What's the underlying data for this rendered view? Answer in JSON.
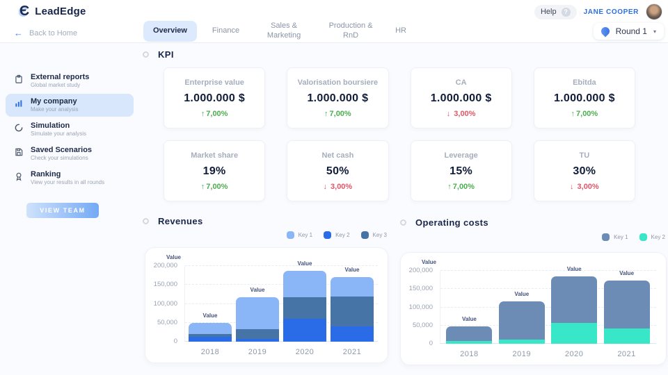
{
  "header": {
    "brand": "LeadEdge",
    "help_label": "Help",
    "user_name": "JANE COOPER",
    "back_label": "Back to Home",
    "tabs": [
      {
        "label": "Overview",
        "active": true
      },
      {
        "label": "Finance",
        "active": false
      },
      {
        "label": "Sales & Marketing",
        "active": false
      },
      {
        "label": "Production & RnD",
        "active": false
      },
      {
        "label": "HR",
        "active": false
      }
    ],
    "round_selector": {
      "label": "Round 1"
    },
    "icons": {
      "back": "←",
      "caret": "▾",
      "help": "?",
      "logo": "Є"
    }
  },
  "sidebar": {
    "items": [
      {
        "title": "External reports",
        "subtitle": "Global market study",
        "icon": "clipboard-icon",
        "active": false
      },
      {
        "title": "My company",
        "subtitle": "Make your analysis",
        "icon": "bar-chart-icon",
        "active": true
      },
      {
        "title": "Simulation",
        "subtitle": "Simulate your analysis",
        "icon": "spinner-circle-icon",
        "active": false
      },
      {
        "title": "Saved Scenarios",
        "subtitle": "Check your simulations",
        "icon": "save-icon",
        "active": false
      },
      {
        "title": "Ranking",
        "subtitle": "View your results in all rounds",
        "icon": "medal-icon",
        "active": false
      }
    ],
    "view_team_label": "VIEW TEAM"
  },
  "kpi": {
    "section_title": "KPI",
    "colors": {
      "up": "#4cae4f",
      "down": "#e15665"
    },
    "cards": [
      {
        "title": "Enterprise value",
        "value": "1.000.000 $",
        "arrow": "↑",
        "delta": "7,00%",
        "direction": "up"
      },
      {
        "title": "Valorisation boursiere",
        "value": "1.000.000 $",
        "arrow": "↑",
        "delta": "7,00%",
        "direction": "up"
      },
      {
        "title": "CA",
        "value": "1.000.000 $",
        "arrow": "↓",
        "delta": "3,00%",
        "direction": "down"
      },
      {
        "title": "Ebitda",
        "value": "1.000.000 $",
        "arrow": "↑",
        "delta": "7,00%",
        "direction": "up"
      },
      {
        "title": "Market share",
        "value": "19%",
        "arrow": "↑",
        "delta": "7,00%",
        "direction": "up"
      },
      {
        "title": "Net cash",
        "value": "50%",
        "arrow": "↓",
        "delta": "3,00%",
        "direction": "down"
      },
      {
        "title": "Leverage",
        "value": "15%",
        "arrow": "↑",
        "delta": "7,00%",
        "direction": "up"
      },
      {
        "title": "TU",
        "value": "30%",
        "arrow": "↓",
        "delta": "3,00%",
        "direction": "down"
      }
    ]
  },
  "chart_data": [
    {
      "type": "bar",
      "stacked": true,
      "title": "Revenues",
      "axis_label": "Value",
      "bar_label": "Value",
      "categories": [
        "2018",
        "2019",
        "2020",
        "2021"
      ],
      "series": [
        {
          "name": "Key 2",
          "color": "#2a6be8",
          "values": [
            12000,
            8000,
            60000,
            40000
          ]
        },
        {
          "name": "Key 3",
          "color": "#4674a6",
          "values": [
            8000,
            25000,
            57000,
            80000
          ]
        },
        {
          "name": "Key 1",
          "color": "#8ab6f8",
          "values": [
            30000,
            85000,
            70000,
            50000
          ]
        }
      ],
      "totals": [
        50000,
        118000,
        187000,
        170000
      ],
      "legend": [
        {
          "name": "Key 1",
          "color": "#8ab6f8"
        },
        {
          "name": "Key 2",
          "color": "#2a6be8"
        },
        {
          "name": "Key 3",
          "color": "#4674a6"
        }
      ],
      "legend_position": "top-right",
      "grid": "dashed-horizontal",
      "ylim": [
        0,
        200000
      ],
      "yticks": [
        {
          "label": "0",
          "value": 0
        },
        {
          "label": "50,000",
          "value": 50000
        },
        {
          "label": "100,000",
          "value": 100000
        },
        {
          "label": "150,000",
          "value": 150000
        },
        {
          "label": "200,000",
          "value": 200000
        }
      ]
    },
    {
      "type": "bar",
      "stacked": true,
      "title": "Operating costs",
      "axis_label": "Value",
      "bar_label": "Value",
      "categories": [
        "2018",
        "2019",
        "2020",
        "2021"
      ],
      "series": [
        {
          "name": "Key 2",
          "color": "#38e6c8",
          "values": [
            8000,
            12000,
            58000,
            42000
          ]
        },
        {
          "name": "Key 1",
          "color": "#6d8cb5",
          "values": [
            40000,
            105000,
            127000,
            131000
          ]
        }
      ],
      "totals": [
        48000,
        117000,
        185000,
        173000
      ],
      "legend": [
        {
          "name": "Key 1",
          "color": "#6d8cb5"
        },
        {
          "name": "Key 2",
          "color": "#38e6c8"
        }
      ],
      "legend_position": "top-right",
      "grid": "dashed-horizontal",
      "ylim": [
        0,
        200000
      ],
      "yticks": [
        {
          "label": "0",
          "value": 0
        },
        {
          "label": "50,000",
          "value": 50000
        },
        {
          "label": "100,000",
          "value": 100000
        },
        {
          "label": "150,000",
          "value": 150000
        },
        {
          "label": "200,000",
          "value": 200000
        }
      ]
    }
  ]
}
